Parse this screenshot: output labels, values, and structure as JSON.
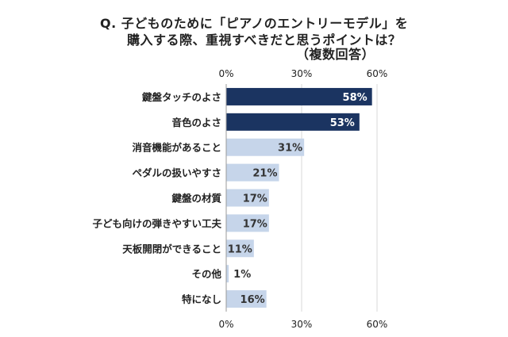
{
  "title": {
    "line1": "Q. 子どものために「ピアノのエントリーモデル」を",
    "line2": "購入する際、重視すべきだと思うポイントは？",
    "line3": "（複数回答）"
  },
  "colors": {
    "dark_bar": "#1b3461",
    "light_bar": "#c6d5ea",
    "gridline": "#d9d9d9",
    "axis": "#9a9a9a"
  },
  "chart_data": {
    "type": "bar",
    "orientation": "horizontal",
    "categories": [
      "鍵盤タッチのよさ",
      "音色のよさ",
      "消音機能があること",
      "ペダルの扱いやすさ",
      "鍵盤の材質",
      "子ども向けの弾きやすい工夫",
      "天板開閉ができること",
      "その他",
      "特になし"
    ],
    "values": [
      58,
      53,
      31,
      21,
      17,
      17,
      11,
      1,
      16
    ],
    "data_labels": [
      "58%",
      "53%",
      "31%",
      "21%",
      "17%",
      "17%",
      "11%",
      "1%",
      "16%"
    ],
    "highlighted": [
      true,
      true,
      false,
      false,
      false,
      false,
      false,
      false,
      false
    ],
    "xlim": [
      0,
      60
    ],
    "ticks": [
      0,
      30,
      60
    ],
    "tick_labels": [
      "0%",
      "30%",
      "60%"
    ],
    "grid": true
  }
}
